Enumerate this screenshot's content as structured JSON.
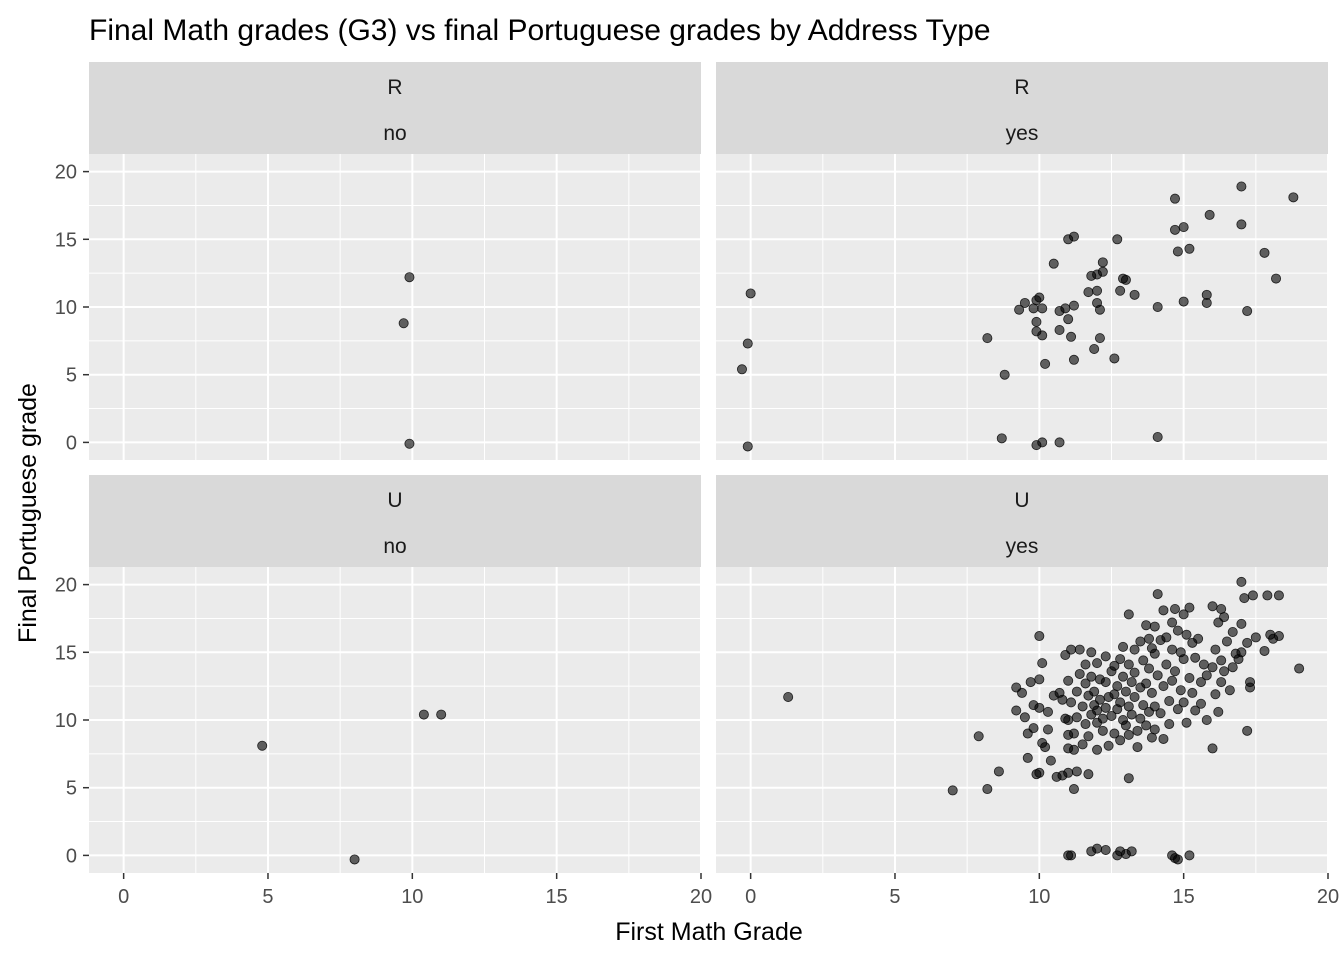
{
  "chart_data": {
    "type": "scatter",
    "title": "Final Math grades (G3) vs final Portuguese grades by Address Type",
    "xlabel": "First Math Grade",
    "ylabel": "Final Portuguese grade",
    "xlim": [
      -1.2,
      20
    ],
    "ylim": [
      -1.3,
      21.3
    ],
    "x_ticks": [
      0,
      5,
      10,
      15,
      20
    ],
    "y_ticks": [
      0,
      5,
      10,
      15,
      20
    ],
    "grid": true,
    "point_color": "#000000",
    "point_opacity": 0.6,
    "panel_background": "#EBEBEB",
    "strip_background": "#D9D9D9",
    "panels": [
      {
        "row_label": "R",
        "col_label": "no",
        "points": [
          [
            9.9,
            12.2
          ],
          [
            9.7,
            8.8
          ],
          [
            9.9,
            -0.1
          ]
        ]
      },
      {
        "row_label": "R",
        "col_label": "yes",
        "points": [
          [
            0.0,
            11.0
          ],
          [
            -0.1,
            7.3
          ],
          [
            -0.3,
            5.4
          ],
          [
            -0.1,
            -0.3
          ],
          [
            8.7,
            0.3
          ],
          [
            9.9,
            -0.2
          ],
          [
            10.1,
            0.0
          ],
          [
            10.7,
            0.0
          ],
          [
            14.1,
            0.4
          ],
          [
            8.2,
            7.7
          ],
          [
            8.8,
            5.0
          ],
          [
            9.3,
            9.8
          ],
          [
            9.5,
            10.3
          ],
          [
            9.8,
            9.9
          ],
          [
            10.0,
            10.7
          ],
          [
            9.9,
            10.5
          ],
          [
            9.9,
            8.9
          ],
          [
            9.9,
            8.2
          ],
          [
            10.1,
            7.9
          ],
          [
            10.2,
            5.8
          ],
          [
            10.1,
            9.9
          ],
          [
            10.7,
            8.3
          ],
          [
            10.7,
            9.7
          ],
          [
            10.9,
            9.9
          ],
          [
            11.0,
            9.1
          ],
          [
            11.1,
            7.8
          ],
          [
            11.2,
            6.1
          ],
          [
            11.2,
            10.1
          ],
          [
            10.5,
            13.2
          ],
          [
            11.0,
            15.0
          ],
          [
            11.2,
            15.2
          ],
          [
            11.7,
            11.1
          ],
          [
            11.8,
            12.3
          ],
          [
            11.9,
            6.9
          ],
          [
            12.0,
            12.4
          ],
          [
            12.0,
            11.2
          ],
          [
            12.0,
            10.3
          ],
          [
            12.1,
            9.8
          ],
          [
            12.1,
            7.7
          ],
          [
            12.2,
            13.3
          ],
          [
            12.2,
            12.6
          ],
          [
            12.6,
            6.2
          ],
          [
            12.7,
            15.0
          ],
          [
            12.8,
            11.2
          ],
          [
            12.9,
            12.1
          ],
          [
            13.0,
            12.0
          ],
          [
            13.3,
            10.9
          ],
          [
            14.1,
            10.0
          ],
          [
            14.7,
            18.0
          ],
          [
            14.7,
            15.7
          ],
          [
            14.8,
            14.1
          ],
          [
            15.0,
            15.9
          ],
          [
            15.0,
            10.4
          ],
          [
            15.2,
            14.3
          ],
          [
            15.8,
            10.9
          ],
          [
            15.8,
            10.3
          ],
          [
            15.9,
            16.8
          ],
          [
            17.0,
            16.1
          ],
          [
            17.0,
            18.9
          ],
          [
            17.2,
            9.7
          ],
          [
            17.8,
            14.0
          ],
          [
            18.2,
            12.1
          ],
          [
            18.8,
            18.1
          ]
        ]
      },
      {
        "row_label": "U",
        "col_label": "no",
        "points": [
          [
            4.8,
            8.1
          ],
          [
            8.0,
            -0.3
          ],
          [
            10.4,
            10.4
          ],
          [
            11.0,
            10.4
          ]
        ]
      },
      {
        "row_label": "U",
        "col_label": "yes",
        "points": [
          [
            1.3,
            11.7
          ],
          [
            7.0,
            4.8
          ],
          [
            7.9,
            8.8
          ],
          [
            8.2,
            4.9
          ],
          [
            8.6,
            6.2
          ],
          [
            11.0,
            0.0
          ],
          [
            11.1,
            0.0
          ],
          [
            11.8,
            0.3
          ],
          [
            12.0,
            0.5
          ],
          [
            12.3,
            0.4
          ],
          [
            12.7,
            0.0
          ],
          [
            12.8,
            0.3
          ],
          [
            13.0,
            0.1
          ],
          [
            13.2,
            0.3
          ],
          [
            14.6,
            0.0
          ],
          [
            14.7,
            -0.2
          ],
          [
            14.8,
            -0.3
          ],
          [
            15.2,
            0.0
          ],
          [
            9.2,
            12.4
          ],
          [
            9.2,
            10.7
          ],
          [
            9.4,
            12.0
          ],
          [
            9.5,
            10.2
          ],
          [
            9.6,
            9.0
          ],
          [
            9.6,
            7.2
          ],
          [
            9.7,
            12.8
          ],
          [
            9.8,
            11.1
          ],
          [
            9.8,
            9.4
          ],
          [
            9.9,
            6.0
          ],
          [
            10.0,
            16.2
          ],
          [
            10.0,
            13.0
          ],
          [
            10.0,
            10.9
          ],
          [
            10.0,
            6.1
          ],
          [
            10.1,
            14.2
          ],
          [
            10.1,
            8.3
          ],
          [
            10.2,
            8.0
          ],
          [
            10.3,
            10.6
          ],
          [
            10.3,
            9.3
          ],
          [
            10.4,
            7.0
          ],
          [
            10.5,
            11.8
          ],
          [
            10.6,
            5.8
          ],
          [
            10.7,
            12.0
          ],
          [
            10.8,
            11.5
          ],
          [
            10.8,
            5.9
          ],
          [
            10.9,
            14.8
          ],
          [
            10.9,
            10.1
          ],
          [
            11.0,
            12.9
          ],
          [
            11.0,
            10.0
          ],
          [
            11.0,
            8.9
          ],
          [
            11.0,
            7.9
          ],
          [
            11.0,
            6.1
          ],
          [
            11.1,
            15.2
          ],
          [
            11.1,
            11.3
          ],
          [
            11.2,
            9.0
          ],
          [
            11.2,
            7.8
          ],
          [
            11.2,
            4.9
          ],
          [
            11.3,
            12.1
          ],
          [
            11.3,
            10.2
          ],
          [
            11.3,
            6.2
          ],
          [
            11.4,
            13.4
          ],
          [
            11.4,
            15.2
          ],
          [
            11.5,
            11.0
          ],
          [
            11.5,
            8.2
          ],
          [
            11.6,
            14.1
          ],
          [
            11.6,
            12.7
          ],
          [
            11.6,
            9.7
          ],
          [
            11.7,
            11.8
          ],
          [
            11.7,
            8.8
          ],
          [
            11.7,
            6.0
          ],
          [
            11.8,
            15.0
          ],
          [
            11.8,
            13.2
          ],
          [
            11.8,
            10.4
          ],
          [
            11.9,
            12.1
          ],
          [
            11.9,
            11.1
          ],
          [
            12.0,
            14.2
          ],
          [
            12.0,
            10.7
          ],
          [
            12.0,
            9.8
          ],
          [
            12.0,
            7.8
          ],
          [
            12.1,
            13.0
          ],
          [
            12.1,
            11.5
          ],
          [
            12.2,
            10.1
          ],
          [
            12.2,
            9.2
          ],
          [
            12.3,
            14.7
          ],
          [
            12.3,
            12.8
          ],
          [
            12.3,
            10.9
          ],
          [
            12.4,
            11.7
          ],
          [
            12.4,
            8.1
          ],
          [
            12.5,
            13.6
          ],
          [
            12.5,
            10.3
          ],
          [
            12.6,
            14.0
          ],
          [
            12.6,
            11.9
          ],
          [
            12.6,
            9.0
          ],
          [
            12.7,
            12.5
          ],
          [
            12.7,
            10.8
          ],
          [
            12.8,
            14.5
          ],
          [
            12.8,
            11.3
          ],
          [
            12.8,
            8.5
          ],
          [
            12.9,
            15.4
          ],
          [
            12.9,
            13.2
          ],
          [
            12.9,
            10.0
          ],
          [
            13.0,
            12.1
          ],
          [
            13.0,
            9.6
          ],
          [
            13.1,
            17.8
          ],
          [
            13.1,
            14.1
          ],
          [
            13.1,
            11.0
          ],
          [
            13.1,
            8.9
          ],
          [
            13.1,
            5.7
          ],
          [
            13.2,
            12.8
          ],
          [
            13.2,
            10.4
          ],
          [
            13.3,
            15.2
          ],
          [
            13.3,
            13.5
          ],
          [
            13.3,
            11.7
          ],
          [
            13.4,
            9.2
          ],
          [
            13.4,
            8.0
          ],
          [
            13.5,
            15.8
          ],
          [
            13.5,
            12.4
          ],
          [
            13.5,
            10.1
          ],
          [
            13.6,
            14.4
          ],
          [
            13.6,
            11.1
          ],
          [
            13.7,
            17.0
          ],
          [
            13.7,
            12.7
          ],
          [
            13.7,
            9.6
          ],
          [
            13.8,
            16.0
          ],
          [
            13.8,
            13.8
          ],
          [
            13.8,
            10.6
          ],
          [
            13.9,
            15.3
          ],
          [
            13.9,
            12.0
          ],
          [
            13.9,
            8.7
          ],
          [
            14.0,
            16.9
          ],
          [
            14.0,
            14.9
          ],
          [
            14.0,
            11.0
          ],
          [
            14.0,
            9.3
          ],
          [
            14.1,
            19.3
          ],
          [
            14.1,
            13.3
          ],
          [
            14.2,
            15.9
          ],
          [
            14.2,
            10.5
          ],
          [
            14.3,
            18.1
          ],
          [
            14.3,
            12.5
          ],
          [
            14.3,
            8.6
          ],
          [
            14.4,
            16.1
          ],
          [
            14.4,
            14.1
          ],
          [
            14.5,
            11.4
          ],
          [
            14.5,
            9.7
          ],
          [
            14.6,
            17.2
          ],
          [
            14.6,
            15.2
          ],
          [
            14.6,
            12.9
          ],
          [
            14.7,
            18.2
          ],
          [
            14.7,
            13.6
          ],
          [
            14.8,
            16.6
          ],
          [
            14.8,
            10.8
          ],
          [
            14.9,
            15.0
          ],
          [
            14.9,
            12.2
          ],
          [
            15.0,
            17.8
          ],
          [
            15.0,
            14.5
          ],
          [
            15.0,
            11.3
          ],
          [
            15.1,
            16.3
          ],
          [
            15.1,
            9.8
          ],
          [
            15.2,
            18.3
          ],
          [
            15.2,
            13.1
          ],
          [
            15.3,
            15.7
          ],
          [
            15.3,
            12.0
          ],
          [
            15.4,
            14.6
          ],
          [
            15.4,
            10.7
          ],
          [
            15.5,
            16.0
          ],
          [
            15.6,
            12.8
          ],
          [
            15.6,
            11.2
          ],
          [
            15.7,
            14.1
          ],
          [
            15.8,
            10.0
          ],
          [
            15.8,
            13.3
          ],
          [
            16.0,
            18.4
          ],
          [
            16.0,
            13.9
          ],
          [
            16.0,
            7.9
          ],
          [
            16.1,
            15.2
          ],
          [
            16.1,
            11.9
          ],
          [
            16.2,
            17.2
          ],
          [
            16.2,
            10.6
          ],
          [
            16.3,
            18.2
          ],
          [
            16.3,
            14.4
          ],
          [
            16.3,
            12.8
          ],
          [
            16.4,
            17.6
          ],
          [
            16.4,
            13.6
          ],
          [
            16.5,
            15.8
          ],
          [
            16.6,
            12.2
          ],
          [
            16.7,
            16.5
          ],
          [
            16.7,
            13.9
          ],
          [
            16.8,
            14.9
          ],
          [
            16.9,
            14.5
          ],
          [
            17.0,
            20.2
          ],
          [
            17.0,
            17.1
          ],
          [
            17.0,
            15.0
          ],
          [
            17.1,
            19.0
          ],
          [
            17.2,
            9.2
          ],
          [
            17.2,
            15.7
          ],
          [
            17.3,
            12.8
          ],
          [
            17.3,
            12.4
          ],
          [
            17.4,
            19.2
          ],
          [
            17.5,
            16.1
          ],
          [
            17.8,
            15.1
          ],
          [
            17.9,
            19.2
          ],
          [
            18.0,
            16.3
          ],
          [
            18.1,
            16.0
          ],
          [
            18.3,
            16.2
          ],
          [
            18.3,
            19.2
          ],
          [
            19.0,
            13.8
          ]
        ]
      }
    ]
  }
}
